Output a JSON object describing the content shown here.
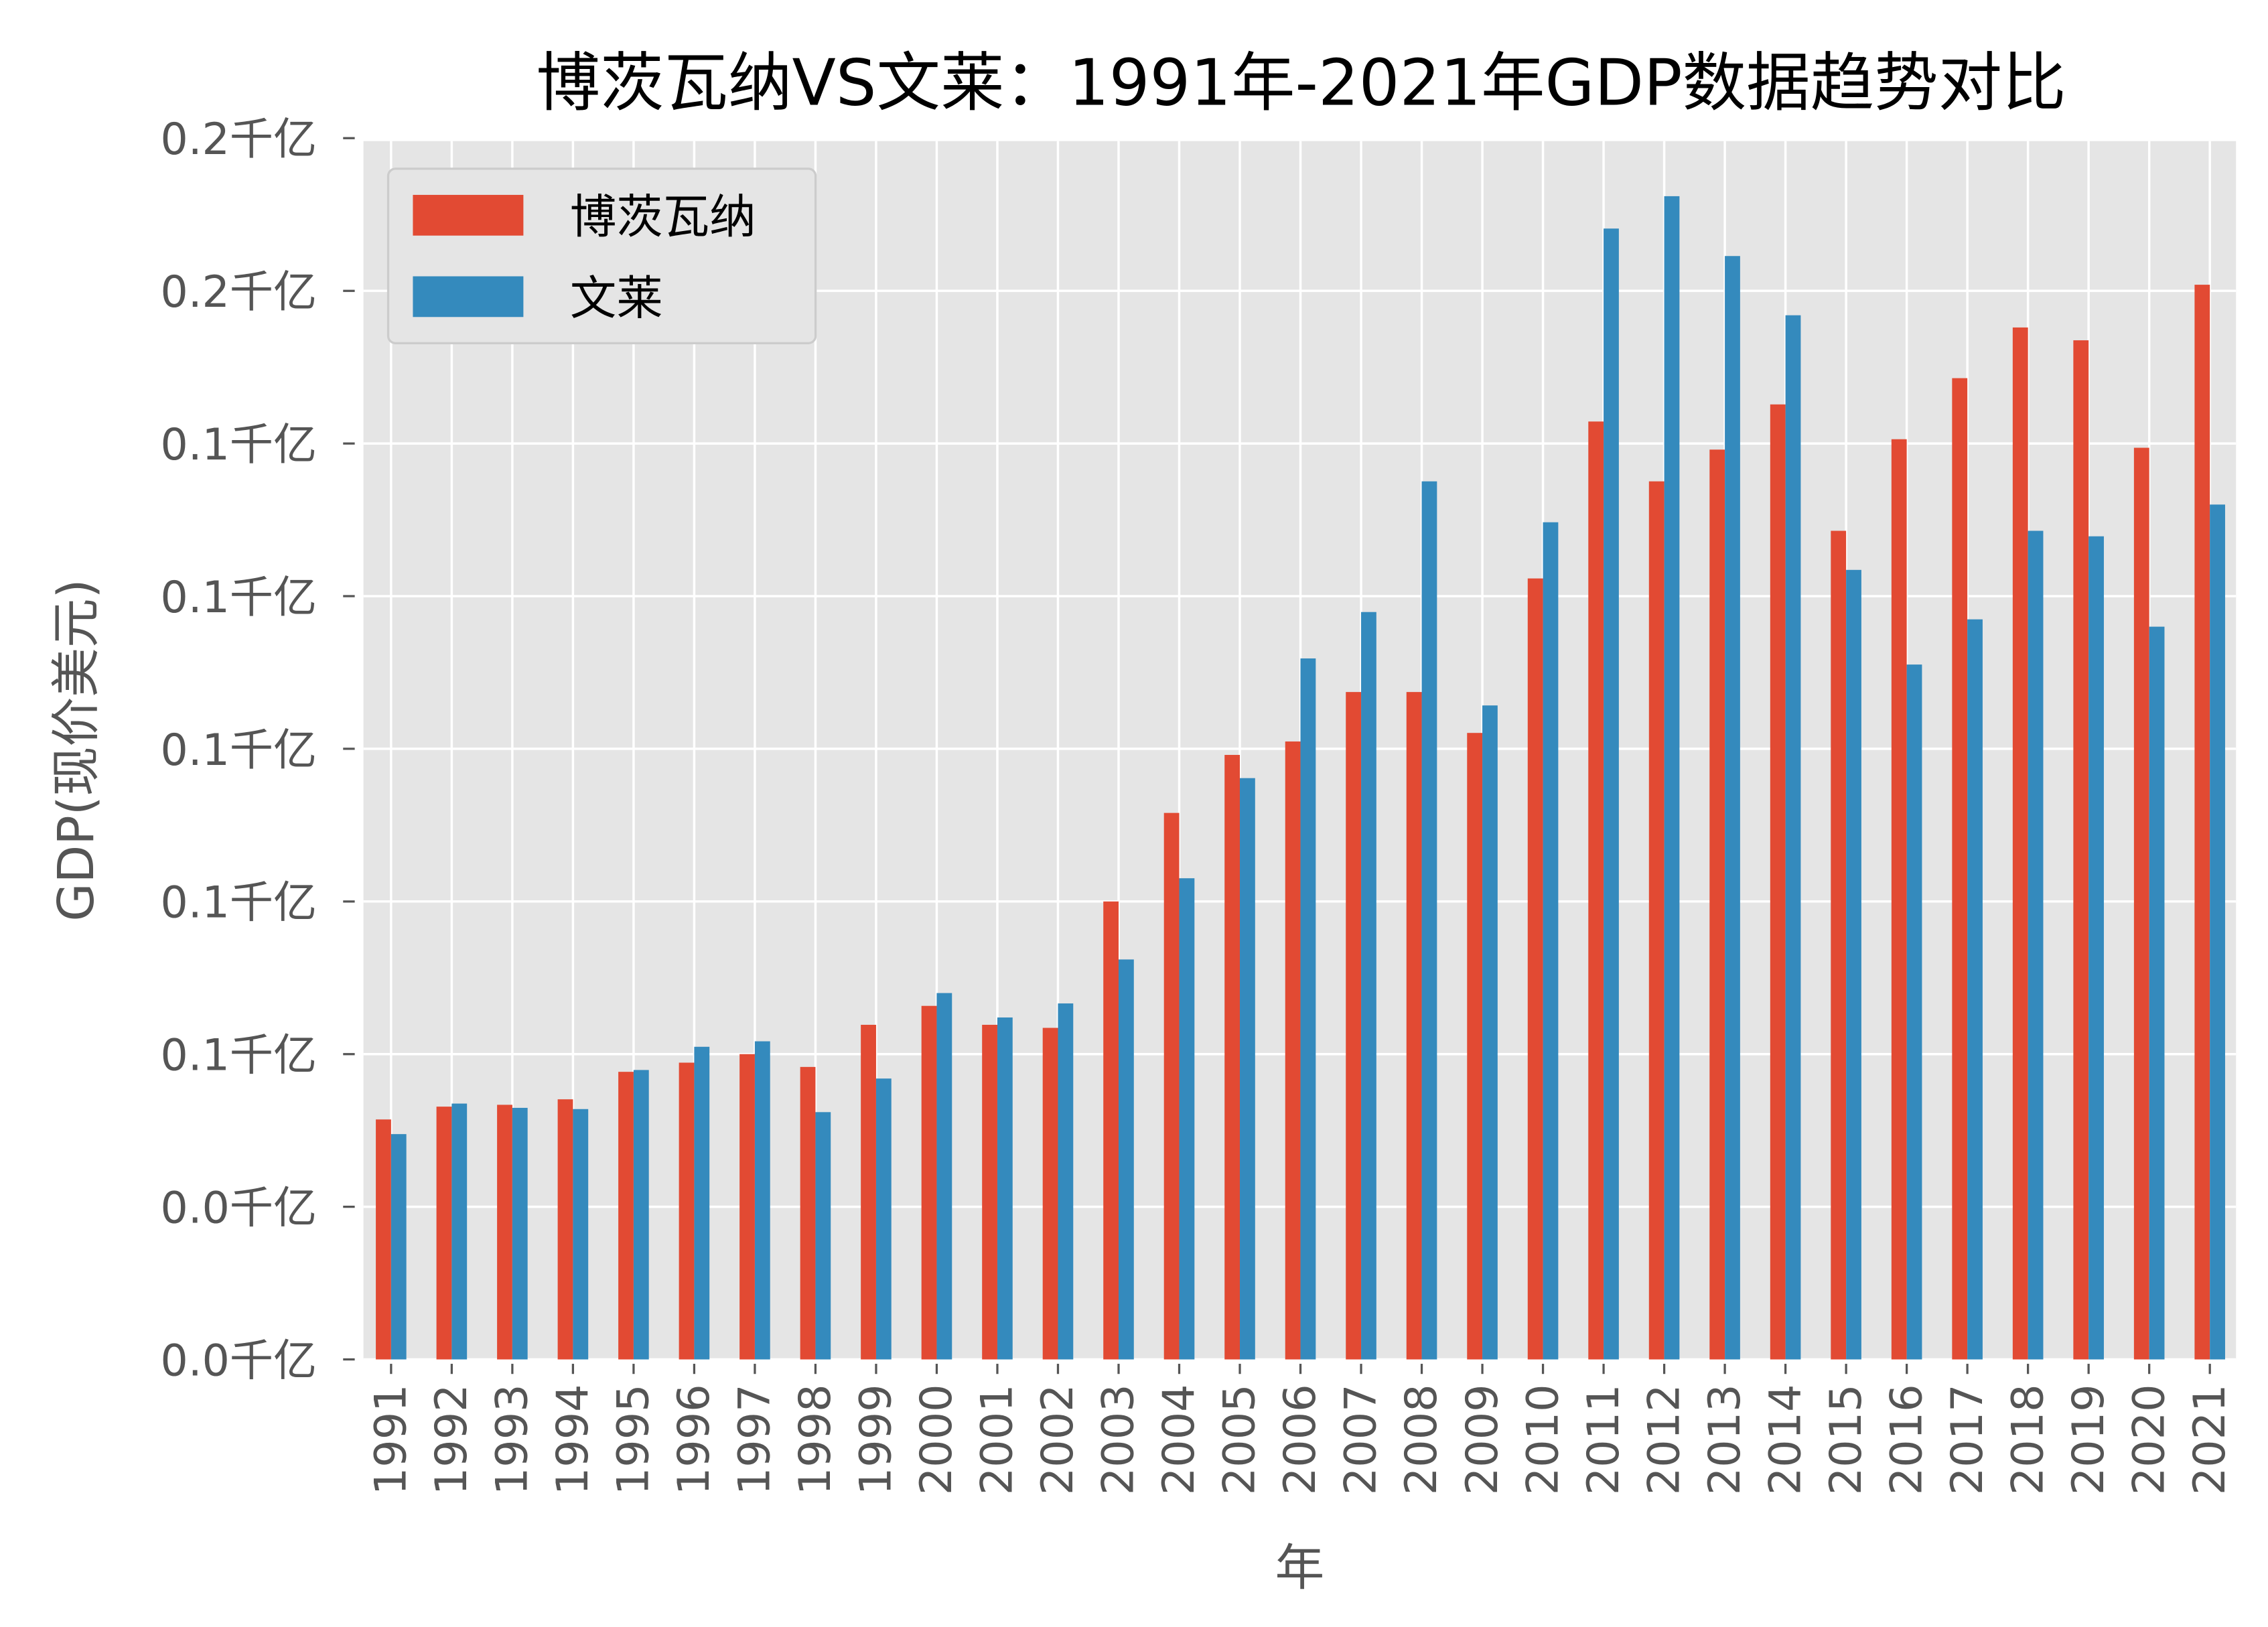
{
  "chart_data": {
    "type": "bar",
    "title": "博茨瓦纳VS文莱：1991年-2021年GDP数据趋势对比",
    "xlabel": "年",
    "ylabel": "GDP(现价美元)",
    "ylim": [
      0,
      0.2
    ],
    "yticks": [
      0,
      0.025,
      0.05,
      0.075,
      0.1,
      0.125,
      0.15,
      0.175,
      0.2
    ],
    "ytick_labels": [
      "0.0千亿",
      "0.0千亿",
      "0.1千亿",
      "0.1千亿",
      "0.1千亿",
      "0.1千亿",
      "0.1千亿",
      "0.2千亿",
      "0.2千亿"
    ],
    "grid": true,
    "legend_position": "top-left",
    "categories": [
      "1991",
      "1992",
      "1993",
      "1994",
      "1995",
      "1996",
      "1997",
      "1998",
      "1999",
      "2000",
      "2001",
      "2002",
      "2003",
      "2004",
      "2005",
      "2006",
      "2007",
      "2008",
      "2009",
      "2010",
      "2011",
      "2012",
      "2013",
      "2014",
      "2015",
      "2016",
      "2017",
      "2018",
      "2019",
      "2020",
      "2021"
    ],
    "series": [
      {
        "name": "博茨瓦纳",
        "color": "#E24A33",
        "values": [
          0.0393,
          0.0414,
          0.0417,
          0.0426,
          0.0471,
          0.0486,
          0.05,
          0.0479,
          0.0548,
          0.0579,
          0.0548,
          0.0543,
          0.075,
          0.0895,
          0.099,
          0.1012,
          0.1093,
          0.1093,
          0.1026,
          0.1279,
          0.1536,
          0.1438,
          0.149,
          0.1564,
          0.1357,
          0.1507,
          0.1607,
          0.169,
          0.1669,
          0.1493,
          0.176
        ]
      },
      {
        "name": "文莱",
        "color": "#348ABD",
        "values": [
          0.0369,
          0.0419,
          0.0412,
          0.041,
          0.0474,
          0.0512,
          0.0521,
          0.0405,
          0.046,
          0.06,
          0.056,
          0.0583,
          0.0655,
          0.0788,
          0.0952,
          0.1148,
          0.1224,
          0.1438,
          0.1071,
          0.1371,
          0.1852,
          0.1905,
          0.1807,
          0.171,
          0.1293,
          0.1138,
          0.1212,
          0.1357,
          0.1348,
          0.12,
          0.14
        ]
      }
    ]
  }
}
